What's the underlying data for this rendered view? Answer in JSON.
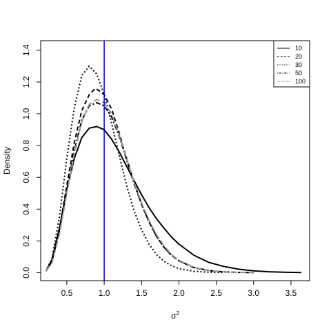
{
  "chart_data": {
    "type": "line",
    "xlabel": "σ",
    "xlabel_superscript": "2",
    "ylabel": "Density",
    "xlim": [
      0.15,
      3.75
    ],
    "ylim": [
      -0.05,
      1.46
    ],
    "x_ticks": [
      "0.5",
      "1.0",
      "1.5",
      "2.0",
      "2.5",
      "3.0",
      "3.5"
    ],
    "y_ticks": [
      "0.0",
      "0.2",
      "0.4",
      "0.6",
      "0.8",
      "1.0",
      "1.2",
      "1.4"
    ],
    "reference_line": {
      "x": 1.0,
      "color": "#0000cc"
    },
    "legend_position": "top-right",
    "series": [
      {
        "name": "10",
        "color": "#000000",
        "dash": "solid",
        "points": [
          [
            0.22,
            0.01
          ],
          [
            0.3,
            0.08
          ],
          [
            0.4,
            0.28
          ],
          [
            0.5,
            0.52
          ],
          [
            0.6,
            0.72
          ],
          [
            0.7,
            0.85
          ],
          [
            0.8,
            0.91
          ],
          [
            0.9,
            0.92
          ],
          [
            1.0,
            0.9
          ],
          [
            1.1,
            0.84
          ],
          [
            1.2,
            0.76
          ],
          [
            1.3,
            0.67
          ],
          [
            1.4,
            0.58
          ],
          [
            1.5,
            0.49
          ],
          [
            1.6,
            0.41
          ],
          [
            1.7,
            0.34
          ],
          [
            1.8,
            0.28
          ],
          [
            1.9,
            0.225
          ],
          [
            2.0,
            0.18
          ],
          [
            2.2,
            0.11
          ],
          [
            2.4,
            0.065
          ],
          [
            2.6,
            0.04
          ],
          [
            2.8,
            0.022
          ],
          [
            3.0,
            0.012
          ],
          [
            3.2,
            0.006
          ],
          [
            3.4,
            0.003
          ],
          [
            3.64,
            0.001
          ]
        ]
      },
      {
        "name": "20",
        "color": "#000000",
        "dash": "dashed",
        "points": [
          [
            0.22,
            0.01
          ],
          [
            0.3,
            0.07
          ],
          [
            0.4,
            0.27
          ],
          [
            0.5,
            0.55
          ],
          [
            0.6,
            0.82
          ],
          [
            0.7,
            1.02
          ],
          [
            0.8,
            1.12
          ],
          [
            0.88,
            1.16
          ],
          [
            0.95,
            1.14
          ],
          [
            1.0,
            1.12
          ],
          [
            1.1,
            1.03
          ],
          [
            1.2,
            0.88
          ],
          [
            1.3,
            0.72
          ],
          [
            1.4,
            0.57
          ],
          [
            1.5,
            0.43
          ],
          [
            1.6,
            0.32
          ],
          [
            1.7,
            0.23
          ],
          [
            1.8,
            0.16
          ],
          [
            1.9,
            0.11
          ],
          [
            2.0,
            0.075
          ],
          [
            2.2,
            0.032
          ],
          [
            2.4,
            0.013
          ],
          [
            2.6,
            0.005
          ],
          [
            2.8,
            0.002
          ],
          [
            3.0,
            0.0005
          ]
        ]
      },
      {
        "name": "30",
        "color": "#000000",
        "dash": "dotted",
        "points": [
          [
            0.22,
            0.01
          ],
          [
            0.3,
            0.09
          ],
          [
            0.4,
            0.35
          ],
          [
            0.5,
            0.72
          ],
          [
            0.6,
            1.04
          ],
          [
            0.7,
            1.24
          ],
          [
            0.8,
            1.3
          ],
          [
            0.9,
            1.25
          ],
          [
            1.0,
            1.12
          ],
          [
            1.1,
            0.94
          ],
          [
            1.2,
            0.74
          ],
          [
            1.3,
            0.55
          ],
          [
            1.4,
            0.39
          ],
          [
            1.5,
            0.27
          ],
          [
            1.6,
            0.18
          ],
          [
            1.7,
            0.115
          ],
          [
            1.8,
            0.072
          ],
          [
            1.9,
            0.044
          ],
          [
            2.0,
            0.026
          ],
          [
            2.2,
            0.009
          ],
          [
            2.4,
            0.003
          ],
          [
            2.6,
            0.001
          ]
        ]
      },
      {
        "name": "50",
        "color": "#000000",
        "dash": "dotdash",
        "points": [
          [
            0.22,
            0.01
          ],
          [
            0.3,
            0.07
          ],
          [
            0.4,
            0.26
          ],
          [
            0.5,
            0.52
          ],
          [
            0.6,
            0.77
          ],
          [
            0.7,
            0.96
          ],
          [
            0.8,
            1.05
          ],
          [
            0.9,
            1.07
          ],
          [
            1.0,
            1.05
          ],
          [
            1.1,
            0.98
          ],
          [
            1.2,
            0.86
          ],
          [
            1.3,
            0.71
          ],
          [
            1.4,
            0.56
          ],
          [
            1.5,
            0.43
          ],
          [
            1.6,
            0.32
          ],
          [
            1.7,
            0.23
          ],
          [
            1.8,
            0.16
          ],
          [
            1.9,
            0.11
          ],
          [
            2.0,
            0.075
          ],
          [
            2.2,
            0.033
          ],
          [
            2.4,
            0.014
          ],
          [
            2.6,
            0.006
          ],
          [
            2.8,
            0.002
          ],
          [
            3.0,
            0.001
          ]
        ]
      },
      {
        "name": "100",
        "color": "#999999",
        "dash": "longdash",
        "points": [
          [
            0.22,
            0.01
          ],
          [
            0.3,
            0.06
          ],
          [
            0.4,
            0.24
          ],
          [
            0.5,
            0.5
          ],
          [
            0.6,
            0.75
          ],
          [
            0.7,
            0.95
          ],
          [
            0.8,
            1.06
          ],
          [
            0.9,
            1.09
          ],
          [
            1.0,
            1.07
          ],
          [
            1.1,
            1.0
          ],
          [
            1.2,
            0.87
          ],
          [
            1.3,
            0.72
          ],
          [
            1.4,
            0.57
          ],
          [
            1.5,
            0.44
          ],
          [
            1.6,
            0.33
          ],
          [
            1.7,
            0.24
          ],
          [
            1.8,
            0.17
          ],
          [
            1.9,
            0.115
          ],
          [
            2.0,
            0.078
          ],
          [
            2.2,
            0.034
          ],
          [
            2.4,
            0.014
          ],
          [
            2.6,
            0.006
          ],
          [
            2.8,
            0.002
          ],
          [
            3.0,
            0.001
          ]
        ]
      }
    ]
  }
}
